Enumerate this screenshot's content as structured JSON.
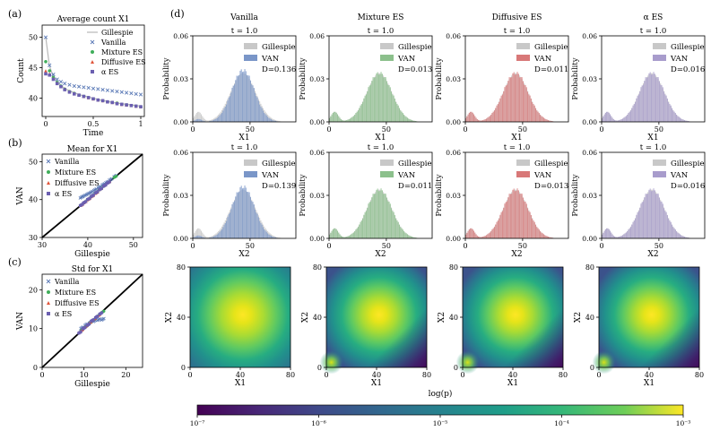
{
  "panel_labels": [
    "(a)",
    "(b)",
    "(c)",
    "(d)"
  ],
  "colors": {
    "gillespie": "#c8c8c8",
    "vanilla": "#7a96c8",
    "mixture": "#8cc08c",
    "diffusive": "#d87878",
    "alpha": "#a89ccc",
    "vanilla_marker": "#5a79b6",
    "mixture_marker": "#3fae5a",
    "diffusive_marker": "#e0553a",
    "alpha_marker": "#6b5fb0"
  },
  "chart_data": [
    {
      "id": "a",
      "type": "line",
      "title": "Average count X1",
      "xlabel": "Time",
      "ylabel": "Count",
      "xlim": [
        0,
        1
      ],
      "ylim": [
        37,
        52
      ],
      "xticks": [
        0,
        0.5,
        1
      ],
      "xticklabels": [
        "0",
        "0.5",
        "1"
      ],
      "yticks": [
        40,
        45,
        50
      ],
      "yticklabels": [
        "40",
        "45",
        "50"
      ],
      "legend": [
        "Gillespie",
        "Vanilla",
        "Mixture ES",
        "Diffusive ES",
        "α ES"
      ],
      "legend_loc": "upper right",
      "x": [
        0,
        0.04,
        0.08,
        0.12,
        0.16,
        0.2,
        0.25,
        0.3,
        0.35,
        0.4,
        0.45,
        0.5,
        0.55,
        0.6,
        0.65,
        0.7,
        0.75,
        0.8,
        0.85,
        0.9,
        0.95,
        1.0
      ],
      "series": [
        {
          "name": "Gillespie",
          "values": [
            50,
            45.2,
            43.6,
            42.7,
            42.1,
            41.6,
            41.2,
            40.9,
            40.6,
            40.4,
            40.2,
            40.0,
            39.8,
            39.6,
            39.5,
            39.3,
            39.2,
            39.1,
            39.0,
            38.9,
            38.8,
            38.7
          ]
        },
        {
          "name": "Vanilla",
          "values": [
            50,
            45.4,
            43.9,
            43.1,
            42.7,
            42.4,
            42.2,
            42.0,
            41.9,
            41.8,
            41.7,
            41.6,
            41.5,
            41.4,
            41.3,
            41.2,
            41.1,
            41.0,
            40.9,
            40.8,
            40.7,
            40.6
          ]
        },
        {
          "name": "Mixture ES",
          "values": [
            46,
            44.5,
            43.4,
            42.6,
            42.0,
            41.5,
            41.1,
            40.8,
            40.5,
            40.3,
            40.1,
            39.9,
            39.7,
            39.6,
            39.4,
            39.3,
            39.2,
            39.0,
            38.9,
            38.8,
            38.7,
            38.6
          ]
        },
        {
          "name": "Diffusive ES",
          "values": [
            44.5,
            44.0,
            43.2,
            42.5,
            41.9,
            41.5,
            41.1,
            40.8,
            40.5,
            40.3,
            40.1,
            39.9,
            39.7,
            39.6,
            39.4,
            39.3,
            39.2,
            39.0,
            38.9,
            38.8,
            38.7,
            38.6
          ]
        },
        {
          "name": "α ES",
          "values": [
            44,
            43.8,
            43.1,
            42.4,
            41.9,
            41.4,
            41.0,
            40.7,
            40.5,
            40.3,
            40.1,
            39.9,
            39.7,
            39.6,
            39.4,
            39.3,
            39.1,
            39.0,
            38.9,
            38.8,
            38.7,
            38.6
          ]
        }
      ]
    },
    {
      "id": "b",
      "type": "scatter",
      "title": "Mean for X1",
      "xlabel": "Gillespie",
      "ylabel": "VAN",
      "xlim": [
        30,
        52
      ],
      "ylim": [
        30,
        52
      ],
      "xticks": [
        30,
        40,
        50
      ],
      "xticklabels": [
        "30",
        "40",
        "50"
      ],
      "yticks": [
        30,
        40,
        50
      ],
      "yticklabels": [
        "30",
        "40",
        "50"
      ],
      "legend": [
        "Vanilla",
        "Mixture ES",
        "Diffusive ES",
        "α ES"
      ],
      "legend_loc": "upper left",
      "diagonal": [
        30,
        52
      ],
      "series": [
        {
          "name": "Vanilla",
          "x": [
            38.6,
            39.2,
            40.0,
            40.8,
            41.6,
            42.5,
            43.4,
            44.2,
            45.0,
            46.0
          ],
          "y": [
            40.6,
            41.0,
            41.5,
            42.0,
            42.6,
            43.3,
            44.0,
            44.6,
            45.3,
            46.2
          ]
        },
        {
          "name": "Mixture ES",
          "x": [
            38.6,
            39.3,
            40.1,
            40.9,
            41.8,
            42.7,
            43.6,
            44.5,
            46.0
          ],
          "y": [
            38.6,
            39.3,
            40.1,
            40.9,
            41.8,
            42.7,
            43.6,
            44.5,
            46.0
          ]
        },
        {
          "name": "Diffusive ES",
          "x": [
            38.7,
            39.4,
            40.2,
            41.0,
            41.9,
            42.8,
            43.7,
            44.6
          ],
          "y": [
            38.6,
            39.3,
            40.1,
            40.9,
            41.8,
            42.8,
            43.8,
            44.6
          ]
        },
        {
          "name": "α ES",
          "x": [
            38.6,
            39.3,
            40.2,
            41.0,
            41.9,
            42.8,
            43.7,
            44.5
          ],
          "y": [
            38.6,
            39.3,
            40.2,
            41.0,
            41.9,
            42.8,
            43.7,
            44.5
          ]
        }
      ]
    },
    {
      "id": "c",
      "type": "scatter",
      "title": "Std for X1",
      "xlabel": "Gillespie",
      "ylabel": "VAN",
      "xlim": [
        0,
        24
      ],
      "ylim": [
        0,
        24
      ],
      "xticks": [
        0,
        10,
        20
      ],
      "xticklabels": [
        "0",
        "10",
        "20"
      ],
      "yticks": [
        0,
        10,
        20
      ],
      "yticklabels": [
        "0",
        "10",
        "20"
      ],
      "legend": [
        "Vanilla",
        "Mixture ES",
        "Diffusive ES",
        "α ES"
      ],
      "legend_loc": "upper left",
      "diagonal": [
        0,
        24
      ],
      "series": [
        {
          "name": "Vanilla",
          "x": [
            9.5,
            10.5,
            11.5,
            12.5,
            13.5,
            14.5
          ],
          "y": [
            10.2,
            11.0,
            11.6,
            12.0,
            12.3,
            12.4
          ]
        },
        {
          "name": "Mixture ES",
          "x": [
            9.5,
            10.5,
            11.5,
            12.5,
            13.5,
            14.5
          ],
          "y": [
            9.6,
            10.5,
            11.5,
            12.4,
            13.4,
            14.3
          ]
        },
        {
          "name": "Diffusive ES",
          "x": [
            9.5,
            10.5,
            11.5,
            12.5,
            13.5
          ],
          "y": [
            9.6,
            10.6,
            11.6,
            12.5,
            13.4
          ]
        },
        {
          "name": "α ES",
          "x": [
            9.0,
            10.0,
            11.0,
            12.0,
            13.0,
            14.0
          ],
          "y": [
            9.0,
            10.1,
            11.0,
            12.1,
            13.0,
            13.9
          ]
        }
      ]
    },
    {
      "id": "d-hist",
      "type": "bar",
      "description": "probability histograms, Gillespie vs VAN",
      "xlim": [
        0,
        90
      ],
      "ylim": [
        0,
        0.06
      ],
      "xticks": [
        0,
        50
      ],
      "xticklabels": [
        "0",
        "50"
      ],
      "yticks": [
        0,
        0.03,
        0.06
      ],
      "yticklabels": [
        "0.00",
        "0.03",
        "0.06"
      ],
      "ylabel": "Probability",
      "panels": [
        {
          "column": "Vanilla",
          "column_title": "Vanilla",
          "subtitle": "t = 1.0",
          "xlabel": "X1",
          "legend": [
            "Gillespie",
            "VAN"
          ],
          "D": "D=0.136",
          "van_color": "vanilla"
        },
        {
          "column": "Mixture ES",
          "column_title": "Mixture ES",
          "subtitle": "t = 1.0",
          "xlabel": "X1",
          "legend": [
            "Gillespie",
            "VAN"
          ],
          "D": "D=0.013",
          "van_color": "mixture"
        },
        {
          "column": "Diffusive ES",
          "column_title": "Diffusive ES",
          "subtitle": "t = 1.0",
          "xlabel": "X1",
          "legend": [
            "Gillespie",
            "VAN"
          ],
          "D": "D=0.011",
          "van_color": "diffusive"
        },
        {
          "column": "α ES",
          "column_title": "α ES",
          "subtitle": "t = 1.0",
          "xlabel": "X1",
          "legend": [
            "Gillespie",
            "VAN"
          ],
          "D": "D=0.016",
          "van_color": "alpha"
        },
        {
          "column": "Vanilla",
          "subtitle": "t = 1.0",
          "xlabel": "X2",
          "legend": [
            "Gillespie",
            "VAN"
          ],
          "D": "D=0.139",
          "van_color": "vanilla"
        },
        {
          "column": "Mixture ES",
          "subtitle": "t = 1.0",
          "xlabel": "X2",
          "legend": [
            "Gillespie",
            "VAN"
          ],
          "D": "D=0.011",
          "van_color": "mixture"
        },
        {
          "column": "Diffusive ES",
          "subtitle": "t = 1.0",
          "xlabel": "X2",
          "legend": [
            "Gillespie",
            "VAN"
          ],
          "D": "D=0.013",
          "van_color": "diffusive"
        },
        {
          "column": "α ES",
          "subtitle": "t = 1.0",
          "xlabel": "X2",
          "legend": [
            "Gillespie",
            "VAN"
          ],
          "D": "D=0.016",
          "van_color": "alpha"
        }
      ],
      "distribution": {
        "bimodal_small_peak_at": 5,
        "small_peak_height": 0.007,
        "main_peak_at": 44,
        "main_peak_height": 0.034,
        "main_peak_sd": 11
      },
      "vanilla_distribution": {
        "small_peak_height": 0.002,
        "main_peak_at": 44,
        "main_peak_height": 0.036,
        "main_peak_sd": 10
      }
    },
    {
      "id": "d-heatmap",
      "type": "heatmap",
      "description": "joint distribution log(p) over X1, X2",
      "xlabel": "X1",
      "ylabel": "X2",
      "xlim": [
        0,
        80
      ],
      "ylim": [
        0,
        80
      ],
      "xticks": [
        0,
        40,
        80
      ],
      "xticklabels": [
        "0",
        "40",
        "80"
      ],
      "yticks": [
        0,
        40,
        80
      ],
      "yticklabels": [
        "0",
        "40",
        "80"
      ],
      "panels": [
        "Vanilla",
        "Mixture ES",
        "Diffusive ES",
        "α ES"
      ],
      "peak": [
        42,
        42
      ],
      "secondary_peak": [
        4,
        4
      ],
      "colorbar": {
        "label": "log(p)",
        "range": [
          1e-07,
          0.001
        ],
        "ticklabels": [
          "10⁻⁷",
          "10⁻⁶",
          "10⁻⁵",
          "10⁻⁴",
          "10⁻³"
        ],
        "colormap": "viridis"
      }
    }
  ]
}
